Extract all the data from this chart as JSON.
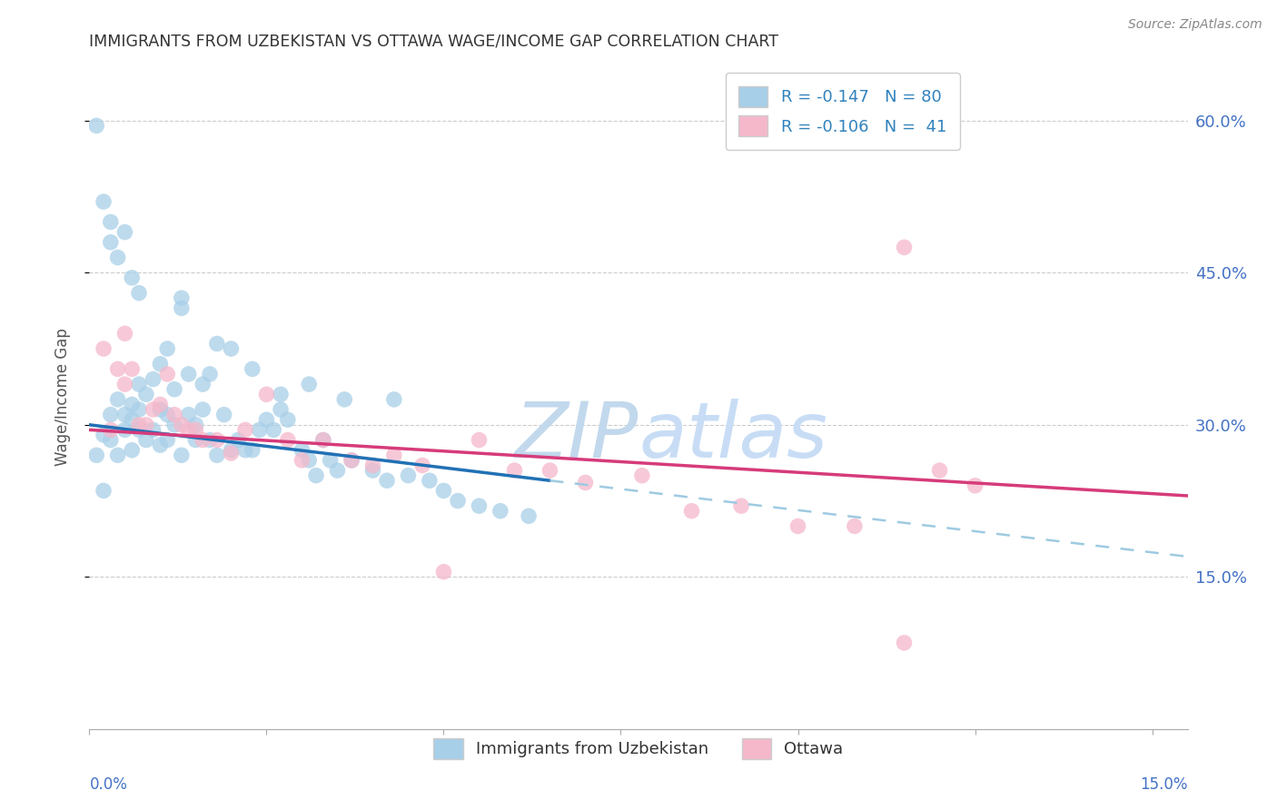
{
  "title": "IMMIGRANTS FROM UZBEKISTAN VS OTTAWA WAGE/INCOME GAP CORRELATION CHART",
  "source": "Source: ZipAtlas.com",
  "ylabel": "Wage/Income Gap",
  "yticks_labels": [
    "60.0%",
    "45.0%",
    "30.0%",
    "15.0%"
  ],
  "ytick_vals": [
    0.6,
    0.45,
    0.3,
    0.15
  ],
  "xlim": [
    0.0,
    0.155
  ],
  "ylim": [
    0.0,
    0.655
  ],
  "legend1_label": "R = -0.147   N = 80",
  "legend2_label": "R = -0.106   N =  41",
  "legend_bottom_label1": "Immigrants from Uzbekistan",
  "legend_bottom_label2": "Ottawa",
  "blue_scatter_color": "#a8cfe8",
  "pink_scatter_color": "#f5b8cb",
  "trend_blue_solid": "#2171b5",
  "trend_pink_solid": "#d63b7a",
  "trend_blue_dashed": "#9ecae1",
  "watermark_zip_color": "#c8dff0",
  "watermark_atlas_color": "#c8ddf5",
  "legend_blue_patch": "#a8cfe8",
  "legend_pink_patch": "#f5b8cb",
  "blue_x": [
    0.001,
    0.002,
    0.002,
    0.003,
    0.003,
    0.004,
    0.004,
    0.005,
    0.005,
    0.006,
    0.006,
    0.006,
    0.007,
    0.007,
    0.007,
    0.008,
    0.008,
    0.009,
    0.009,
    0.01,
    0.01,
    0.01,
    0.011,
    0.011,
    0.011,
    0.012,
    0.012,
    0.013,
    0.013,
    0.014,
    0.014,
    0.015,
    0.015,
    0.016,
    0.016,
    0.017,
    0.017,
    0.018,
    0.019,
    0.02,
    0.021,
    0.022,
    0.023,
    0.024,
    0.025,
    0.026,
    0.027,
    0.028,
    0.03,
    0.031,
    0.032,
    0.033,
    0.034,
    0.035,
    0.037,
    0.04,
    0.042,
    0.045,
    0.048,
    0.05,
    0.052,
    0.055,
    0.058,
    0.062,
    0.001,
    0.002,
    0.003,
    0.003,
    0.004,
    0.005,
    0.006,
    0.007,
    0.013,
    0.018,
    0.02,
    0.023,
    0.027,
    0.031,
    0.036,
    0.043
  ],
  "blue_y": [
    0.27,
    0.235,
    0.29,
    0.285,
    0.31,
    0.27,
    0.325,
    0.295,
    0.31,
    0.275,
    0.305,
    0.32,
    0.295,
    0.315,
    0.34,
    0.285,
    0.33,
    0.295,
    0.345,
    0.28,
    0.315,
    0.36,
    0.285,
    0.31,
    0.375,
    0.3,
    0.335,
    0.27,
    0.415,
    0.31,
    0.35,
    0.3,
    0.285,
    0.34,
    0.315,
    0.285,
    0.35,
    0.27,
    0.31,
    0.275,
    0.285,
    0.275,
    0.275,
    0.295,
    0.305,
    0.295,
    0.315,
    0.305,
    0.275,
    0.265,
    0.25,
    0.285,
    0.265,
    0.255,
    0.265,
    0.255,
    0.245,
    0.25,
    0.245,
    0.235,
    0.225,
    0.22,
    0.215,
    0.21,
    0.595,
    0.52,
    0.5,
    0.48,
    0.465,
    0.49,
    0.445,
    0.43,
    0.425,
    0.38,
    0.375,
    0.355,
    0.33,
    0.34,
    0.325,
    0.325
  ],
  "pink_x": [
    0.002,
    0.003,
    0.004,
    0.005,
    0.006,
    0.007,
    0.008,
    0.009,
    0.01,
    0.011,
    0.012,
    0.013,
    0.014,
    0.015,
    0.016,
    0.018,
    0.02,
    0.022,
    0.025,
    0.028,
    0.03,
    0.033,
    0.037,
    0.04,
    0.043,
    0.047,
    0.05,
    0.055,
    0.06,
    0.065,
    0.07,
    0.078,
    0.085,
    0.092,
    0.1,
    0.108,
    0.115,
    0.12,
    0.125,
    0.005,
    0.115
  ],
  "pink_y": [
    0.375,
    0.295,
    0.355,
    0.34,
    0.355,
    0.3,
    0.3,
    0.315,
    0.32,
    0.35,
    0.31,
    0.3,
    0.295,
    0.295,
    0.285,
    0.285,
    0.272,
    0.295,
    0.33,
    0.285,
    0.265,
    0.285,
    0.265,
    0.26,
    0.27,
    0.26,
    0.155,
    0.285,
    0.255,
    0.255,
    0.243,
    0.25,
    0.215,
    0.22,
    0.2,
    0.2,
    0.085,
    0.255,
    0.24,
    0.39,
    0.475
  ],
  "blue_trend_x0": 0.0,
  "blue_trend_y0": 0.3,
  "blue_trend_x1": 0.065,
  "blue_trend_y1": 0.245,
  "blue_trend_dash_x0": 0.065,
  "blue_trend_dash_y0": 0.245,
  "blue_trend_dash_x1": 0.155,
  "blue_trend_dash_y1": 0.17,
  "pink_trend_x0": 0.0,
  "pink_trend_y0": 0.295,
  "pink_trend_x1": 0.155,
  "pink_trend_y1": 0.23
}
